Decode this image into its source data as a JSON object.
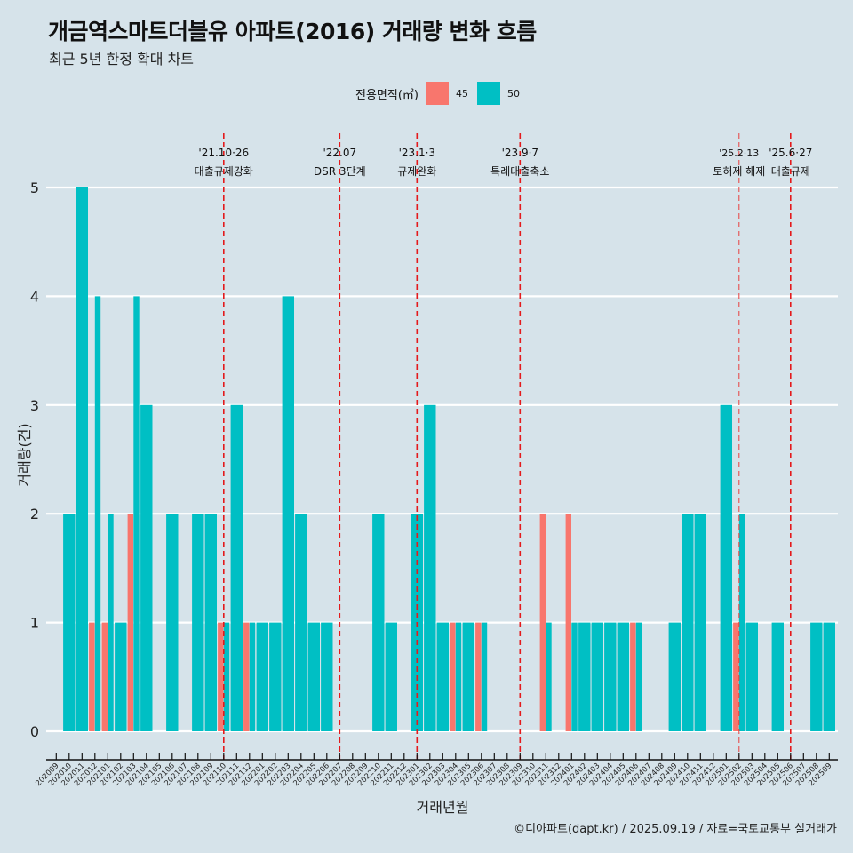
{
  "title": "개금역스마트더블유 아파트(2016) 거래량 변화 흐름",
  "subtitle": "최근 5년 한정 확대 차트",
  "caption": "©디아파트(dapt.kr) / 2025.09.19 / 자료=국토교통부 실거래가",
  "legend": {
    "title": "전용면적(㎡)",
    "items": [
      {
        "label": "45",
        "color": "#f8766d"
      },
      {
        "label": "50",
        "color": "#00bfc4"
      }
    ]
  },
  "chart_data": {
    "type": "bar",
    "stacked": false,
    "dodged": true,
    "title": "개금역스마트더블유 아파트(2016) 거래량 변화 흐름",
    "subtitle": "최근 5년 한정 확대 차트",
    "xlabel": "거래년월",
    "ylabel": "거래량(건)",
    "ylim": [
      0,
      5
    ],
    "yticks": [
      0,
      1,
      2,
      3,
      4,
      5
    ],
    "grid": "horizontal",
    "legend_position": "top",
    "categories": [
      "202009",
      "202010",
      "202011",
      "202012",
      "202101",
      "202102",
      "202103",
      "202104",
      "202105",
      "202106",
      "202107",
      "202108",
      "202109",
      "202110",
      "202111",
      "202112",
      "202201",
      "202202",
      "202203",
      "202204",
      "202205",
      "202206",
      "202207",
      "202208",
      "202209",
      "202210",
      "202211",
      "202212",
      "202301",
      "202302",
      "202303",
      "202304",
      "202305",
      "202306",
      "202307",
      "202308",
      "202309",
      "202310",
      "202311",
      "202312",
      "202401",
      "202402",
      "202403",
      "202404",
      "202405",
      "202406",
      "202407",
      "202408",
      "202409",
      "202410",
      "202411",
      "202412",
      "202501",
      "202502",
      "202503",
      "202504",
      "202505",
      "202506",
      "202507",
      "202508",
      "202509"
    ],
    "series": [
      {
        "name": "45",
        "color": "#f8766d",
        "values": [
          0,
          0,
          0,
          1,
          1,
          0,
          2,
          0,
          0,
          0,
          0,
          0,
          0,
          1,
          0,
          1,
          0,
          0,
          0,
          0,
          0,
          0,
          0,
          0,
          0,
          0,
          0,
          0,
          0,
          0,
          0,
          1,
          0,
          1,
          0,
          0,
          0,
          0,
          2,
          0,
          2,
          0,
          0,
          0,
          0,
          1,
          0,
          0,
          0,
          0,
          0,
          0,
          0,
          1,
          0,
          0,
          0,
          0,
          0,
          0,
          0
        ]
      },
      {
        "name": "50",
        "color": "#00bfc4",
        "values": [
          0,
          2,
          5,
          4,
          2,
          1,
          4,
          3,
          0,
          2,
          0,
          2,
          2,
          1,
          3,
          1,
          1,
          1,
          4,
          2,
          1,
          1,
          0,
          0,
          0,
          2,
          1,
          0,
          2,
          3,
          1,
          1,
          1,
          1,
          0,
          0,
          0,
          0,
          1,
          0,
          1,
          1,
          1,
          1,
          1,
          1,
          0,
          0,
          1,
          2,
          2,
          0,
          3,
          2,
          1,
          0,
          1,
          0,
          0,
          1,
          1
        ]
      }
    ],
    "annotations": [
      {
        "category": "202110",
        "date": "'21.10·26",
        "label": "대출규제강화"
      },
      {
        "category": "202207",
        "date": "'22.07",
        "label": "DSR 3단계"
      },
      {
        "category": "202301",
        "date": "'23.1·3",
        "label": "규제완화"
      },
      {
        "category": "202309",
        "date": "'23.9·7",
        "label": "특례대출축소"
      },
      {
        "category": "202502",
        "date": "'25.2·13",
        "label": "토허제 해제",
        "style": "thin"
      },
      {
        "category": "202506",
        "date": "'25.6·27",
        "label": "대출규제"
      }
    ]
  }
}
